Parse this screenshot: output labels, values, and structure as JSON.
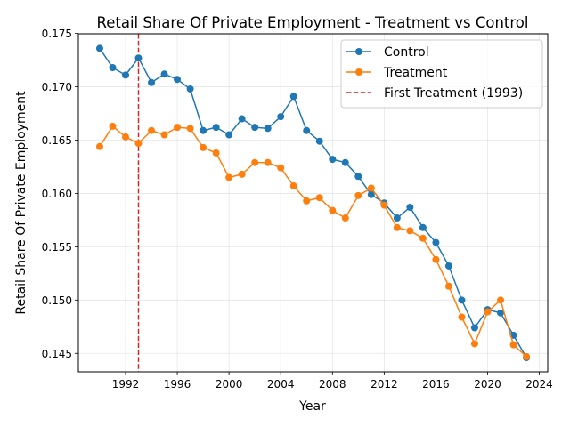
{
  "chart_data": {
    "type": "line",
    "title": "Retail Share Of Private Employment - Treatment vs Control",
    "xlabel": "Year",
    "ylabel": "Retail Share Of Private Employment",
    "xlim": [
      1988.35,
      2024.65
    ],
    "ylim": [
      0.14327,
      0.17497
    ],
    "x_ticks": [
      1992,
      1996,
      2000,
      2004,
      2008,
      2012,
      2016,
      2020,
      2024
    ],
    "y_ticks": [
      0.145,
      0.15,
      0.155,
      0.16,
      0.165,
      0.17,
      0.175
    ],
    "y_tick_labels": [
      "0.145",
      "0.150",
      "0.155",
      "0.160",
      "0.165",
      "0.170",
      "0.175"
    ],
    "grid": true,
    "legend_position": "top-right",
    "x": [
      1990,
      1991,
      1992,
      1993,
      1994,
      1995,
      1996,
      1997,
      1998,
      1999,
      2000,
      2001,
      2002,
      2003,
      2004,
      2005,
      2006,
      2007,
      2008,
      2009,
      2010,
      2011,
      2012,
      2013,
      2014,
      2015,
      2016,
      2017,
      2018,
      2019,
      2020,
      2021,
      2022,
      2023
    ],
    "series": [
      {
        "name": "Control",
        "color": "#1f77b4",
        "values": [
          0.1736,
          0.1718,
          0.1711,
          0.1727,
          0.1704,
          0.1712,
          0.1707,
          0.1698,
          0.1659,
          0.1662,
          0.1655,
          0.167,
          0.1662,
          0.1661,
          0.1672,
          0.1691,
          0.1659,
          0.1649,
          0.1632,
          0.1629,
          0.1616,
          0.1599,
          0.1591,
          0.1577,
          0.1587,
          0.1568,
          0.1554,
          0.1532,
          0.15,
          0.1474,
          0.1491,
          0.1488,
          0.1467,
          0.1446
        ]
      },
      {
        "name": "Treatment",
        "color": "#ff7f0e",
        "values": [
          0.1644,
          0.1663,
          0.1653,
          0.1647,
          0.1659,
          0.1655,
          0.1662,
          0.1661,
          0.1643,
          0.1638,
          0.1615,
          0.1618,
          0.1629,
          0.1629,
          0.1624,
          0.1607,
          0.1593,
          0.1596,
          0.1584,
          0.1577,
          0.1598,
          0.1605,
          0.1589,
          0.1568,
          0.1565,
          0.1558,
          0.1538,
          0.1513,
          0.1484,
          0.1459,
          0.1489,
          0.15,
          0.1458,
          0.1447
        ]
      }
    ],
    "vline": {
      "x": 1993,
      "label": "First Treatment (1993)",
      "color": "#d62728",
      "style": "dashed"
    }
  }
}
